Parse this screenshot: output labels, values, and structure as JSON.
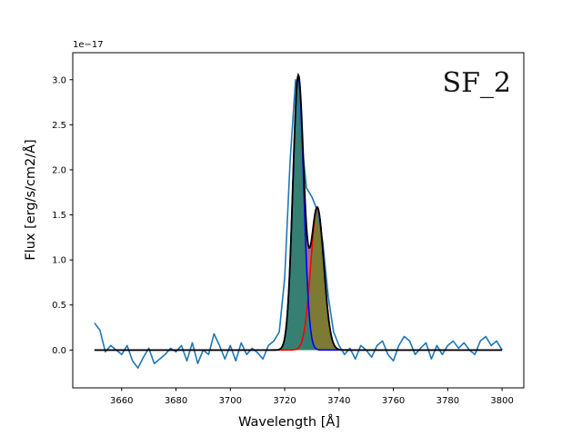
{
  "chart_data": {
    "type": "line",
    "title": "",
    "xlabel": "Wavelength [Å]",
    "ylabel": "Flux [erg/s/cm2/Å]",
    "y_offset_label": "1e−17",
    "annotation": "SF_2",
    "xlim": [
      3642,
      3808
    ],
    "ylim": [
      -0.42,
      3.3
    ],
    "x_ticks": [
      3660,
      3680,
      3700,
      3720,
      3740,
      3760,
      3780,
      3800
    ],
    "y_ticks": [
      0.0,
      0.5,
      1.0,
      1.5,
      2.0,
      2.5,
      3.0
    ],
    "y_tick_labels": [
      "0.0",
      "0.5",
      "1.0",
      "1.5",
      "2.0",
      "2.5",
      "3.0"
    ],
    "grid": false,
    "colors": {
      "observed": "#1f77b4",
      "component_1": "#0000ff",
      "component_2": "#ff0000",
      "total_fit": "#000000",
      "fill_1": "#2f7f72",
      "fill_2": "#7a7a2e",
      "overlap_fill": "#8a5a6a"
    },
    "model": {
      "component_1": {
        "center": 3725.0,
        "amplitude": 3.03,
        "sigma": 2.0
      },
      "component_2": {
        "center": 3732.0,
        "amplitude": 1.58,
        "sigma": 2.4
      },
      "x_range": [
        3650,
        3800
      ]
    },
    "series": [
      {
        "id": "observed",
        "x": [
          3650,
          3652,
          3654,
          3656,
          3658,
          3660,
          3662,
          3664,
          3666,
          3668,
          3670,
          3672,
          3674,
          3676,
          3678,
          3680,
          3682,
          3684,
          3686,
          3688,
          3690,
          3692,
          3694,
          3696,
          3698,
          3700,
          3702,
          3704,
          3706,
          3708,
          3710,
          3712,
          3714,
          3716,
          3718,
          3720,
          3722,
          3724,
          3726,
          3728,
          3730,
          3732,
          3734,
          3736,
          3738,
          3740,
          3742,
          3744,
          3746,
          3748,
          3750,
          3752,
          3754,
          3756,
          3758,
          3760,
          3762,
          3764,
          3766,
          3768,
          3770,
          3772,
          3774,
          3776,
          3778,
          3780,
          3782,
          3784,
          3786,
          3788,
          3790,
          3792,
          3794,
          3796,
          3798,
          3800
        ],
        "y": [
          0.3,
          0.22,
          -0.02,
          0.05,
          0.0,
          -0.05,
          0.05,
          -0.12,
          -0.2,
          -0.08,
          0.02,
          -0.15,
          -0.1,
          -0.05,
          0.02,
          -0.02,
          0.05,
          -0.12,
          0.08,
          -0.15,
          0.0,
          -0.05,
          0.18,
          0.05,
          -0.1,
          0.05,
          -0.12,
          0.08,
          -0.05,
          0.02,
          -0.03,
          -0.1,
          0.05,
          0.1,
          0.2,
          0.8,
          2.1,
          3.0,
          2.4,
          1.8,
          1.7,
          1.55,
          1.2,
          0.6,
          0.2,
          0.05,
          -0.05,
          0.02,
          -0.1,
          0.05,
          0.0,
          -0.08,
          0.05,
          0.1,
          -0.05,
          -0.12,
          0.05,
          0.15,
          0.1,
          -0.05,
          0.02,
          0.08,
          -0.1,
          0.05,
          -0.05,
          0.05,
          0.1,
          0.02,
          0.08,
          0.0,
          -0.05,
          0.1,
          0.15,
          0.05,
          0.1,
          0.0
        ]
      }
    ]
  }
}
